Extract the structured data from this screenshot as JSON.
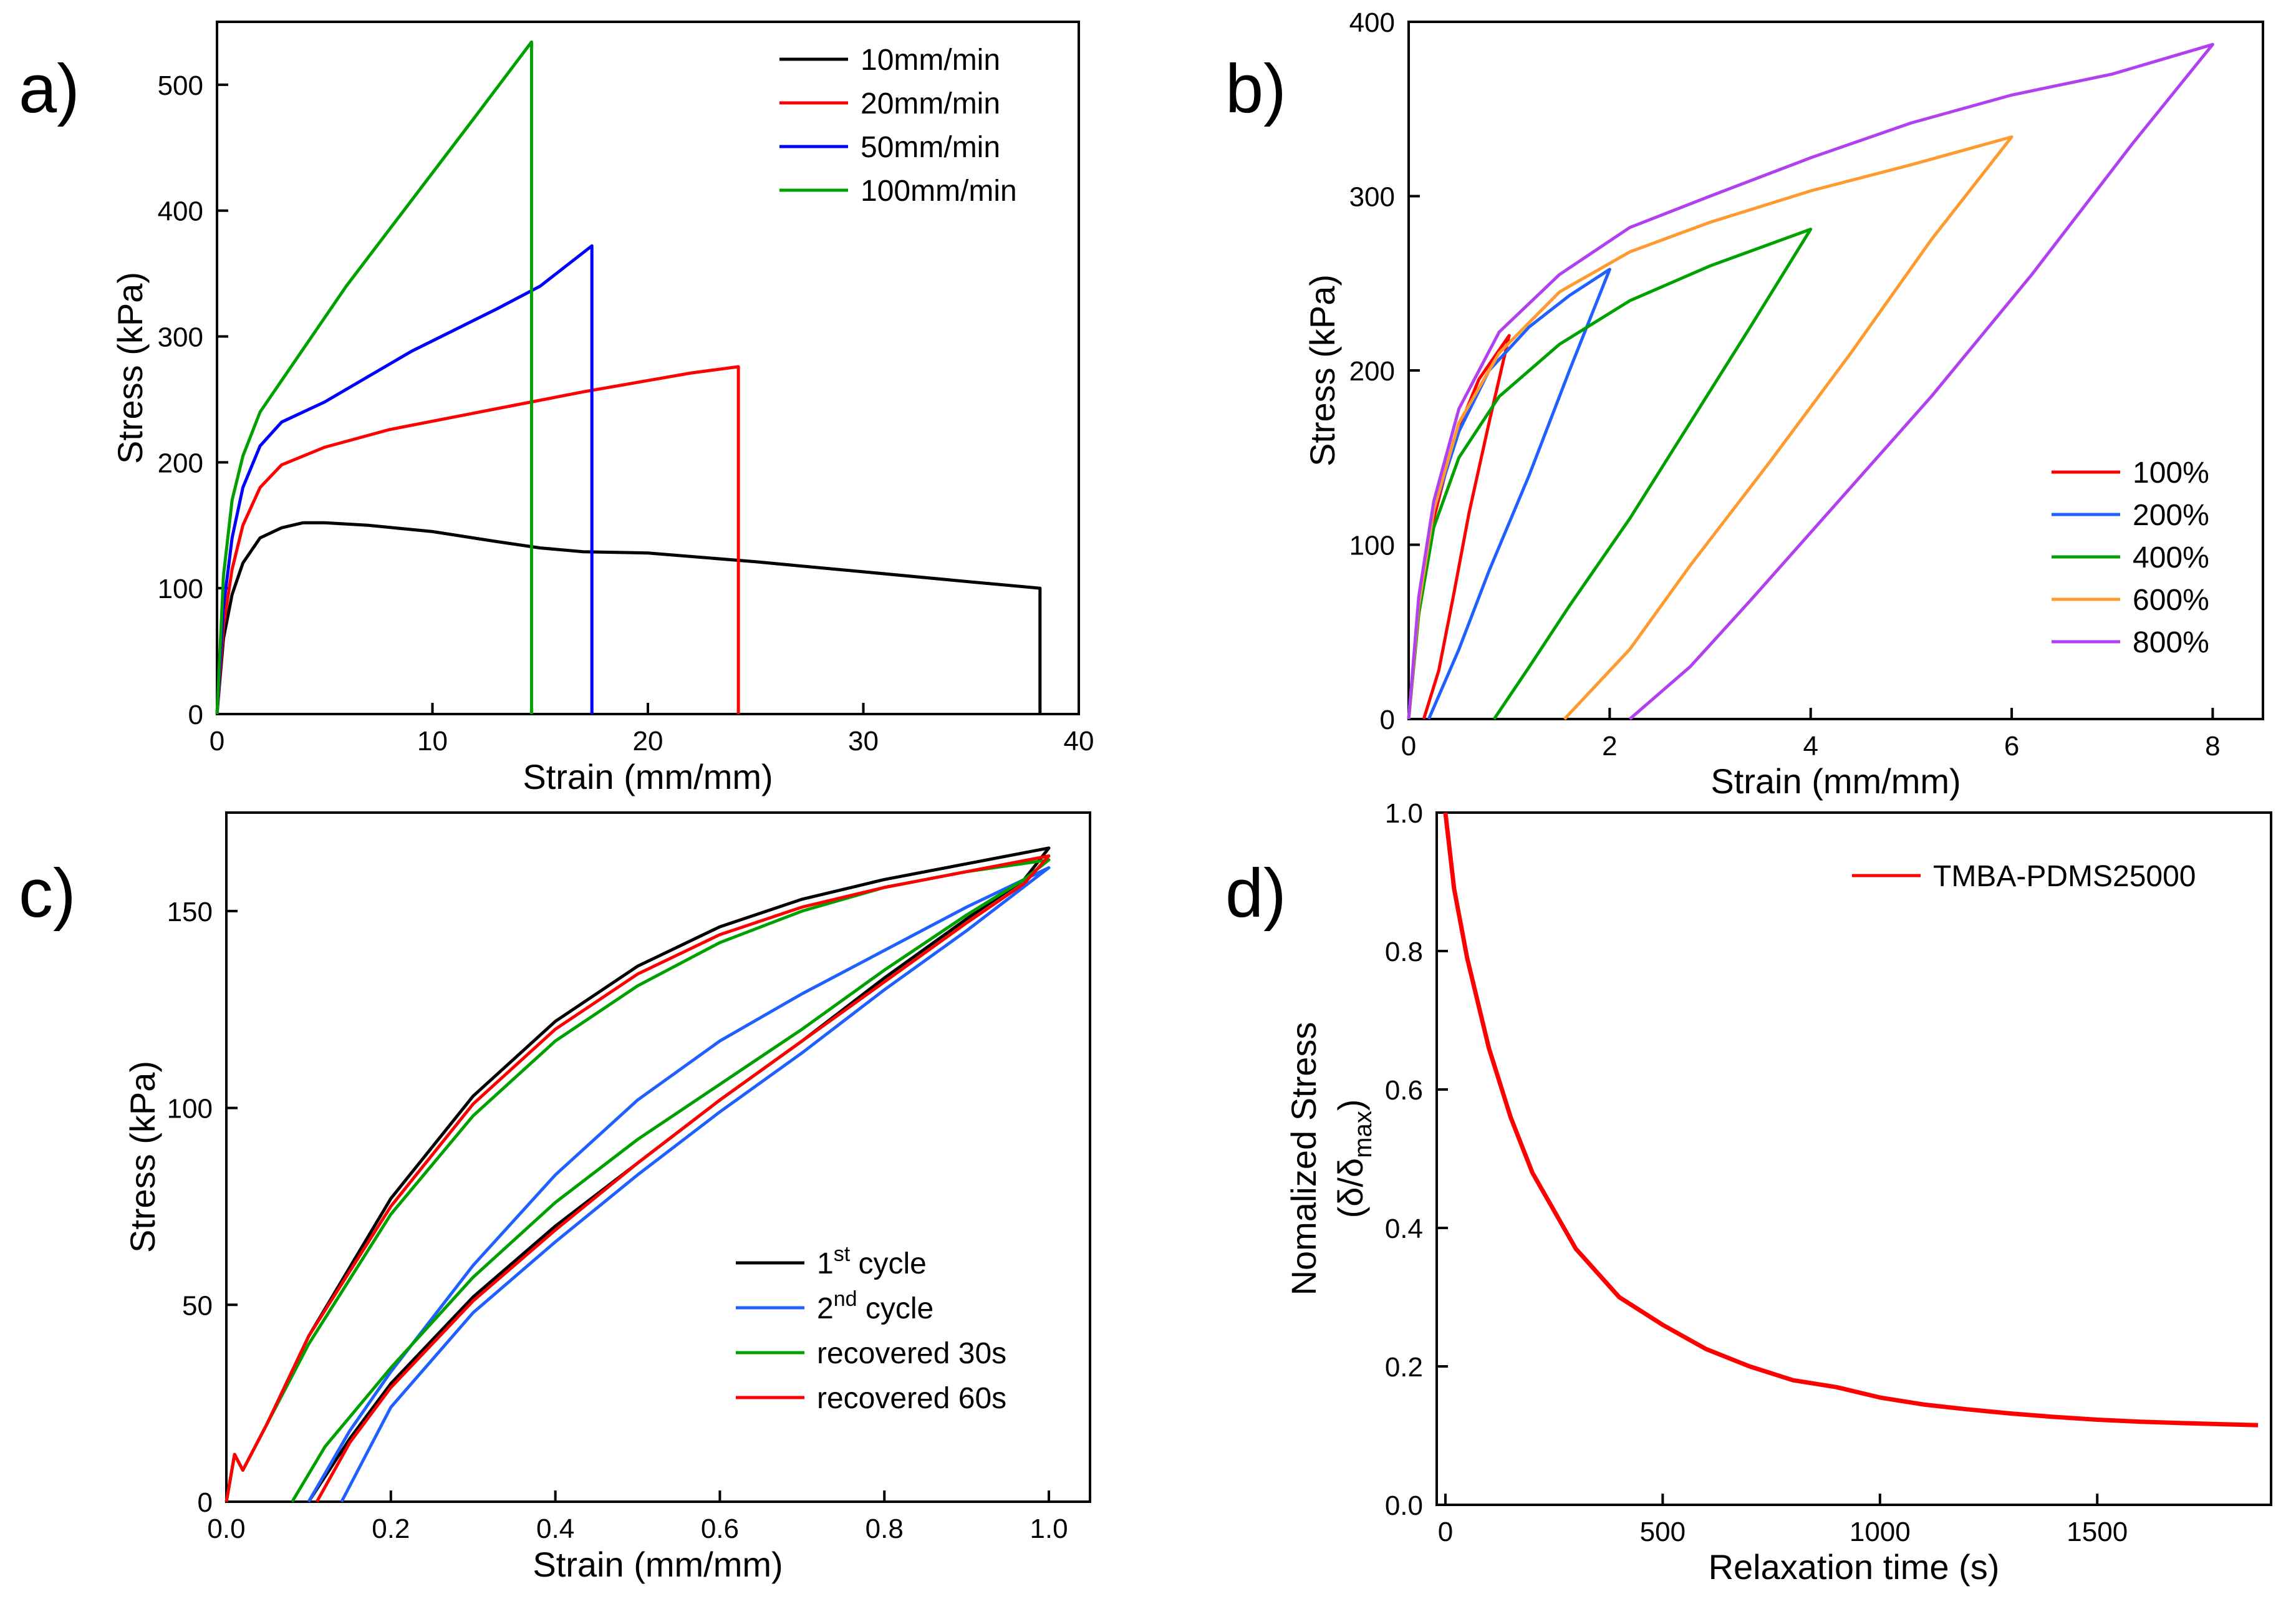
{
  "chart_data": [
    {
      "panel": "a)",
      "type": "line",
      "xlabel": "Strain (mm/mm)",
      "ylabel": "Stress (kPa)",
      "xlim": [
        0,
        40
      ],
      "ylim": [
        0,
        550
      ],
      "xticks": [
        "0",
        "10",
        "20",
        "30",
        "40"
      ],
      "yticks": [
        "0",
        "100",
        "200",
        "300",
        "400",
        "500"
      ],
      "legend_position": "top-right",
      "series": [
        {
          "name": "10mm/min",
          "color": "#000000",
          "x": [
            0,
            0.3,
            0.7,
            1.2,
            2,
            3,
            4,
            5,
            7,
            10,
            13,
            15,
            17,
            20,
            25,
            30,
            35,
            38.2,
            38.2
          ],
          "y": [
            0,
            60,
            95,
            120,
            140,
            148,
            152,
            152,
            150,
            145,
            137,
            132,
            129,
            128,
            121,
            113,
            105,
            100,
            0
          ]
        },
        {
          "name": "20mm/min",
          "color": "#ff0000",
          "x": [
            0,
            0.3,
            0.7,
            1.2,
            2,
            3,
            5,
            8,
            11,
            14,
            17,
            20,
            22,
            24.2,
            24.2
          ],
          "y": [
            0,
            70,
            115,
            150,
            180,
            198,
            212,
            226,
            236,
            246,
            256,
            265,
            271,
            276,
            0
          ]
        },
        {
          "name": "50mm/min",
          "color": "#0000ff",
          "x": [
            0,
            0.3,
            0.7,
            1.2,
            2,
            3,
            5,
            7,
            9,
            11,
            13,
            15,
            17.4,
            17.4
          ],
          "y": [
            0,
            85,
            140,
            180,
            213,
            232,
            248,
            268,
            288,
            305,
            322,
            340,
            372,
            0
          ]
        },
        {
          "name": "100mm/min",
          "color": "#00a000",
          "x": [
            0,
            0.3,
            0.7,
            1.2,
            2,
            3,
            4,
            6,
            8,
            10,
            12,
            14.6,
            14.6
          ],
          "y": [
            0,
            110,
            170,
            205,
            240,
            265,
            290,
            340,
            385,
            430,
            475,
            534,
            0
          ]
        }
      ]
    },
    {
      "panel": "b)",
      "type": "line",
      "xlabel": "Strain (mm/mm)",
      "ylabel": "Stress (kPa)",
      "xlim": [
        0,
        8.5
      ],
      "ylim": [
        0,
        400
      ],
      "xticks": [
        "0",
        "2",
        "4",
        "6",
        "8"
      ],
      "yticks": [
        "0",
        "100",
        "200",
        "300",
        "400"
      ],
      "legend_position": "bottom-right",
      "series": [
        {
          "name": "100%",
          "color": "#ff0000",
          "x": [
            0,
            0.1,
            0.25,
            0.45,
            0.7,
            1.0,
            0.8,
            0.6,
            0.45,
            0.3,
            0.15
          ],
          "y": [
            0,
            60,
            115,
            160,
            195,
            220,
            170,
            118,
            72,
            28,
            0
          ]
        },
        {
          "name": "200%",
          "color": "#2060ff",
          "x": [
            0,
            0.1,
            0.25,
            0.5,
            0.8,
            1.2,
            1.6,
            2.0,
            1.6,
            1.2,
            0.8,
            0.5,
            0.2
          ],
          "y": [
            0,
            65,
            120,
            165,
            200,
            225,
            243,
            258,
            200,
            140,
            85,
            40,
            0
          ]
        },
        {
          "name": "400%",
          "color": "#00a000",
          "x": [
            0,
            0.1,
            0.25,
            0.5,
            0.9,
            1.5,
            2.2,
            3.0,
            4.0,
            3.4,
            2.8,
            2.2,
            1.6,
            1.2,
            0.85
          ],
          "y": [
            0,
            60,
            110,
            150,
            185,
            215,
            240,
            260,
            281,
            225,
            170,
            115,
            65,
            30,
            0
          ]
        },
        {
          "name": "600%",
          "color": "#ff9a2e",
          "x": [
            0,
            0.1,
            0.25,
            0.5,
            0.9,
            1.5,
            2.2,
            3.0,
            4.0,
            5.0,
            6.0,
            5.2,
            4.4,
            3.6,
            2.8,
            2.2,
            1.55
          ],
          "y": [
            0,
            65,
            120,
            170,
            210,
            245,
            268,
            285,
            303,
            318,
            334,
            275,
            210,
            148,
            88,
            40,
            0
          ]
        },
        {
          "name": "800%",
          "color": "#b040f0",
          "x": [
            0,
            0.1,
            0.25,
            0.5,
            0.9,
            1.5,
            2.2,
            3.0,
            4.0,
            5.0,
            6.0,
            7.0,
            8.0,
            7.2,
            6.2,
            5.2,
            4.2,
            3.4,
            2.8,
            2.2
          ],
          "y": [
            0,
            70,
            125,
            178,
            222,
            255,
            282,
            300,
            322,
            342,
            358,
            370,
            387,
            330,
            255,
            185,
            120,
            68,
            30,
            0
          ]
        }
      ]
    },
    {
      "panel": "c)",
      "type": "line",
      "xlabel": "Strain (mm/mm)",
      "ylabel": "Stress (kPa)",
      "xlim": [
        0,
        1.05
      ],
      "ylim": [
        0,
        175
      ],
      "xticks": [
        "0.0",
        "0.2",
        "0.4",
        "0.6",
        "0.8",
        "1.0"
      ],
      "yticks": [
        "0",
        "50",
        "100",
        "150"
      ],
      "legend_position": "bottom-right",
      "series": [
        {
          "name": "1st cycle",
          "color": "#000000",
          "x": [
            0,
            0.01,
            0.02,
            0.05,
            0.1,
            0.2,
            0.3,
            0.4,
            0.5,
            0.6,
            0.7,
            0.8,
            0.9,
            1.0,
            0.97,
            0.9,
            0.8,
            0.7,
            0.6,
            0.5,
            0.4,
            0.3,
            0.2,
            0.15,
            0.1
          ],
          "y": [
            0,
            12,
            8,
            20,
            42,
            77,
            103,
            122,
            136,
            146,
            153,
            158,
            162,
            166,
            158,
            148,
            133,
            117,
            102,
            86,
            70,
            52,
            30,
            16,
            0
          ]
        },
        {
          "name": "2nd cycle",
          "color": "#2060ff",
          "x": [
            0.1,
            0.15,
            0.2,
            0.3,
            0.4,
            0.5,
            0.6,
            0.7,
            0.8,
            0.9,
            1.0,
            0.9,
            0.8,
            0.7,
            0.6,
            0.5,
            0.4,
            0.3,
            0.2,
            0.14
          ],
          "y": [
            0,
            18,
            33,
            60,
            83,
            102,
            117,
            129,
            140,
            151,
            161,
            145,
            130,
            114,
            99,
            83,
            66,
            48,
            24,
            0
          ]
        },
        {
          "name": "recovered 30s",
          "color": "#00a000",
          "x": [
            0,
            0.01,
            0.02,
            0.05,
            0.1,
            0.2,
            0.3,
            0.4,
            0.5,
            0.6,
            0.7,
            0.8,
            0.9,
            1.0,
            0.97,
            0.9,
            0.8,
            0.7,
            0.6,
            0.5,
            0.4,
            0.3,
            0.2,
            0.12,
            0.08
          ],
          "y": [
            0,
            12,
            8,
            20,
            40,
            73,
            98,
            117,
            131,
            142,
            150,
            156,
            160,
            163,
            158,
            149,
            135,
            120,
            106,
            92,
            76,
            57,
            34,
            14,
            0
          ]
        },
        {
          "name": "recovered 60s",
          "color": "#ff0000",
          "x": [
            0,
            0.01,
            0.02,
            0.05,
            0.1,
            0.2,
            0.3,
            0.4,
            0.5,
            0.6,
            0.7,
            0.8,
            0.9,
            1.0,
            0.97,
            0.9,
            0.8,
            0.7,
            0.6,
            0.5,
            0.4,
            0.3,
            0.2,
            0.15,
            0.11
          ],
          "y": [
            0,
            12,
            8,
            20,
            42,
            75,
            101,
            120,
            134,
            144,
            151,
            156,
            160,
            164,
            157,
            147,
            132,
            117,
            102,
            86,
            69,
            51,
            29,
            15,
            0
          ]
        }
      ]
    },
    {
      "panel": "d)",
      "type": "line",
      "xlabel": "Relaxation time (s)",
      "ylabel": "Nomalized Stress",
      "ylabel2": "(δ/δ",
      "ylabel2_sub": "max",
      "ylabel2_end": ")",
      "xlim": [
        -20,
        1900
      ],
      "ylim": [
        0,
        1.0
      ],
      "xticks": [
        "0",
        "500",
        "1000",
        "1500"
      ],
      "yticks": [
        "0.0",
        "0.2",
        "0.4",
        "0.6",
        "0.8",
        "1.0"
      ],
      "legend_position": "top-right",
      "series": [
        {
          "name": "TMBA-PDMS25000",
          "color": "#ff0000",
          "x": [
            0,
            20,
            50,
            100,
            150,
            200,
            300,
            400,
            500,
            600,
            700,
            800,
            900,
            1000,
            1100,
            1200,
            1300,
            1400,
            1500,
            1600,
            1700,
            1870
          ],
          "y": [
            1.0,
            0.89,
            0.79,
            0.66,
            0.56,
            0.48,
            0.37,
            0.3,
            0.26,
            0.225,
            0.2,
            0.18,
            0.17,
            0.155,
            0.145,
            0.138,
            0.132,
            0.127,
            0.123,
            0.12,
            0.118,
            0.115
          ]
        }
      ]
    }
  ]
}
